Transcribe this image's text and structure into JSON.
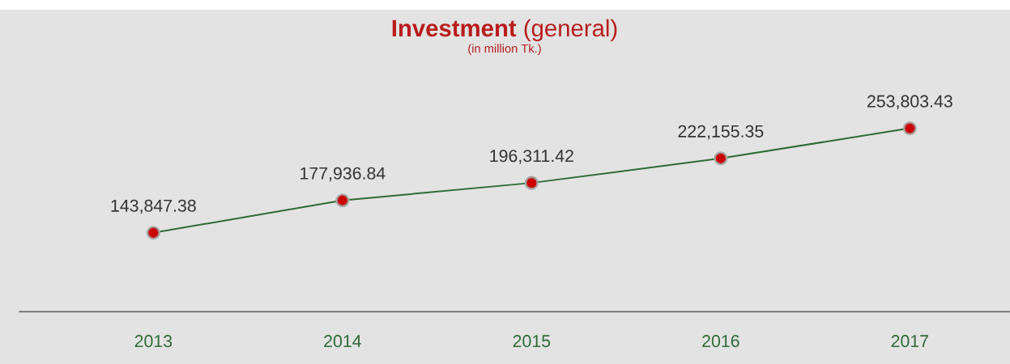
{
  "chart_data": {
    "type": "line",
    "title": "**Investment** (general)",
    "subtitle": "(in million Tk.)",
    "categories": [
      "2013",
      "2014",
      "2015",
      "2016",
      "2017"
    ],
    "series": [
      {
        "color": "#2e6b35",
        "values": [
          143847.38,
          177936.84,
          196311.42,
          222155.35,
          253803.43
        ],
        "value_labels": [
          "143,847.38",
          "177,936.84",
          "196,311.42",
          "222,155.35",
          "253,803.43"
        ]
      }
    ],
    "tick_labels": "x",
    "marker": "circle",
    "line_style": "solid"
  }
}
